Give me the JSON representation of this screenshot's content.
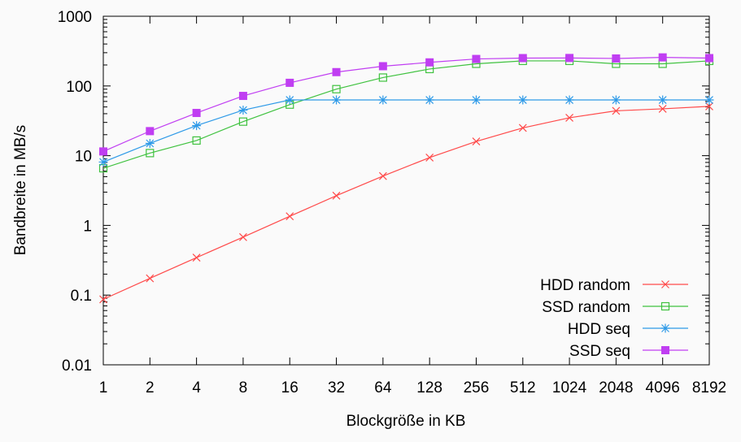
{
  "chart_data": {
    "type": "line",
    "title": "",
    "xlabel": "Blockgröße in KB",
    "ylabel": "Bandbreite in MB/s",
    "y_scale": "log",
    "ylim": [
      0.01,
      1000
    ],
    "x_scale": "log2",
    "grid": false,
    "legend_position": "bottom-right",
    "x": [
      1,
      2,
      4,
      8,
      16,
      32,
      64,
      128,
      256,
      512,
      1024,
      2048,
      4096,
      8192
    ],
    "x_tick_labels": [
      "1",
      "2",
      "4",
      "8",
      "16",
      "32",
      "64",
      "128",
      "256",
      "512",
      "1024",
      "2048",
      "4096",
      "8192"
    ],
    "y_ticks": [
      0.01,
      0.1,
      1,
      10,
      100,
      1000
    ],
    "y_tick_labels": [
      "0.01",
      "0.1",
      "1",
      "10",
      "100",
      "1000"
    ],
    "series": [
      {
        "name": "HDD random",
        "color": "#ff4a4a",
        "marker": "x",
        "values": [
          0.087,
          0.174,
          0.345,
          0.68,
          1.35,
          2.67,
          5.1,
          9.4,
          16,
          25,
          35,
          44,
          47,
          51
        ]
      },
      {
        "name": "SSD random",
        "color": "#3fc23f",
        "marker": "open-square",
        "values": [
          6.6,
          10.9,
          16.5,
          30.8,
          54,
          90,
          132,
          175,
          208,
          229,
          229,
          208,
          208,
          229
        ]
      },
      {
        "name": "HDD seq",
        "color": "#2e9ae8",
        "marker": "star",
        "values": [
          8.1,
          15,
          27,
          45,
          63,
          63,
          63,
          63,
          63,
          63,
          63,
          63,
          63,
          63
        ]
      },
      {
        "name": "SSD seq",
        "color": "#c03ef2",
        "marker": "filled-square",
        "values": [
          11.5,
          22.5,
          41,
          72,
          111,
          158,
          192,
          218,
          244,
          251,
          252,
          248,
          257,
          251
        ]
      }
    ]
  }
}
